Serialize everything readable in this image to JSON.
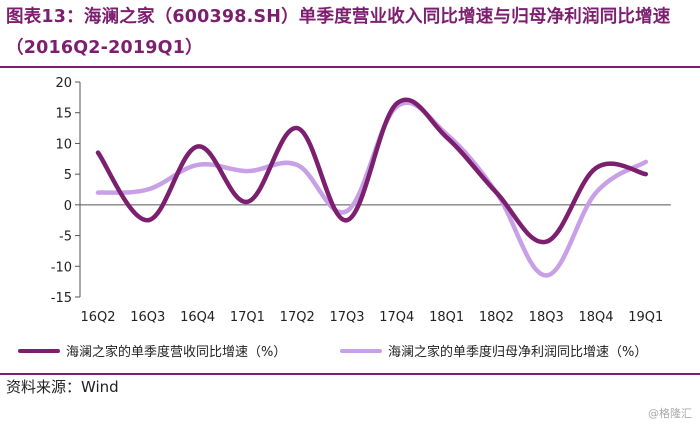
{
  "header": {
    "title": "图表13：海澜之家（600398.SH）单季度营业收入同比增速与归母净利润同比增速（2016Q2-2019Q1）"
  },
  "footer": {
    "source": "资料来源：Wind",
    "watermark": "@格隆汇"
  },
  "chart_data": {
    "type": "line",
    "categories": [
      "16Q2",
      "16Q3",
      "16Q4",
      "17Q1",
      "17Q2",
      "17Q3",
      "17Q4",
      "18Q1",
      "18Q2",
      "18Q3",
      "18Q4",
      "19Q1"
    ],
    "ylim": [
      -15,
      20
    ],
    "yticks": [
      -15,
      -10,
      -5,
      0,
      5,
      10,
      15,
      20
    ],
    "smooth": true,
    "grid": false,
    "legend_position": "bottom",
    "series": [
      {
        "name": "海澜之家的单季度营收同比增速（%）",
        "color": "#7b1f6e",
        "values": [
          8.5,
          -2.5,
          9.5,
          0.5,
          12.5,
          -2.5,
          16.5,
          11,
          2,
          -6,
          6,
          5
        ]
      },
      {
        "name": "海澜之家的单季度归母净利润同比增速（%）",
        "color": "#c8a0e8",
        "values": [
          2,
          2.5,
          6.5,
          5.5,
          6.5,
          -1,
          16,
          11.5,
          2,
          -11.5,
          2,
          7
        ]
      }
    ]
  }
}
